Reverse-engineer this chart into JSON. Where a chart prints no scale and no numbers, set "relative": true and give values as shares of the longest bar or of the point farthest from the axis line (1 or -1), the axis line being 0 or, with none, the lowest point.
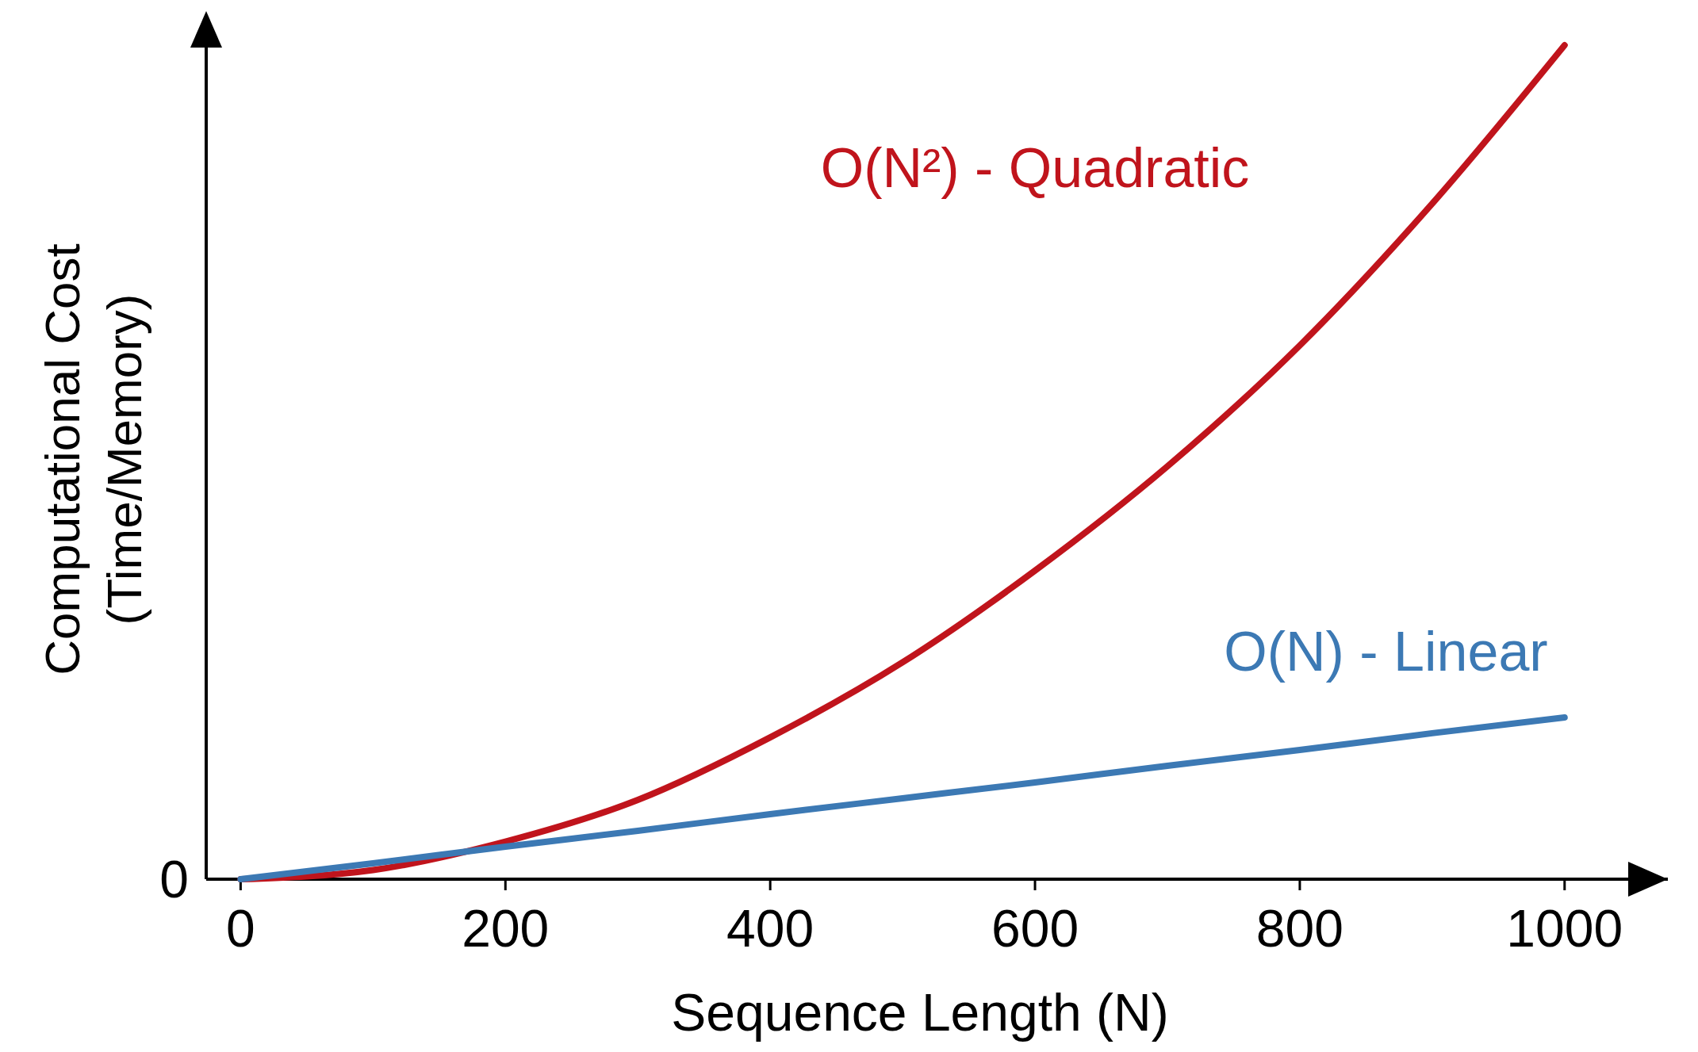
{
  "chart_data": {
    "type": "line",
    "xlabel": "Sequence Length (N)",
    "ylabel": "Computational Cost\n(Time/Memory)",
    "relative": true,
    "annotations": [
      "0"
    ],
    "x": [
      0,
      100,
      200,
      300,
      400,
      500,
      600,
      700,
      800,
      900,
      1000
    ],
    "xlim": [
      -26,
      1078
    ],
    "xticks": [
      0,
      200,
      400,
      600,
      800,
      1000
    ],
    "grid": false,
    "marker": "none",
    "line_style": "solid",
    "series": [
      {
        "name": "O(N²) - Quadratic",
        "color": "#c0141c",
        "values": [
          0,
          0.011,
          0.045,
          0.095,
          0.17,
          0.26,
          0.37,
          0.495,
          0.64,
          0.81,
          1
        ]
      },
      {
        "name": "O(N) - Linear",
        "color": "#3c79b4",
        "values": [
          0,
          0.019,
          0.039,
          0.058,
          0.078,
          0.097,
          0.116,
          0.136,
          0.155,
          0.175,
          0.194
        ]
      }
    ]
  }
}
